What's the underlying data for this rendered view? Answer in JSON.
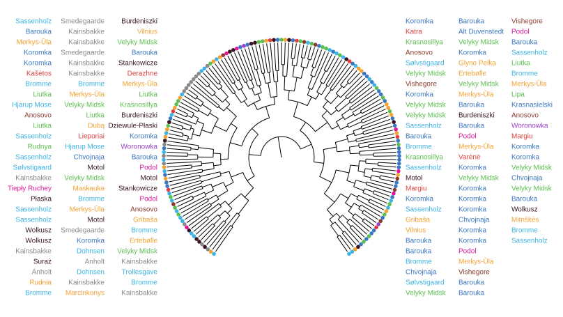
{
  "tree": {
    "tips": [
      "Bromme",
      "Rudnia",
      "Anholt",
      "Suraż",
      "Kainsbakke",
      "Wolkusz",
      "Wolkusz",
      "Sassenholz",
      "Sassenholz",
      "Płaska",
      "Tiepły Ruchey",
      "Kainsbakke",
      "Sølvstigaard",
      "Sassenholz",
      "Rudnya",
      "Sassenholz",
      "Liutka",
      "Anosovo",
      "Hjarup Mose",
      "Liutka",
      "Bromme",
      "Kašėtos",
      "Koromka",
      "Koromka",
      "Merkys-Ūla",
      "Barouka",
      "Sassenholz",
      "Marcinkonys",
      "Kainsbakke",
      "Dohnsen",
      "Anholt",
      "Dohnsen",
      "Koromka",
      "Smedegaarde",
      "Motol",
      "Merkys-Ūla",
      "Bromme",
      "Maskauka",
      "Velyky Midsk",
      "Motol",
      "Chvojnaja",
      "Hjarup Mose",
      "Lieporiai",
      "Dubą",
      "Liutka",
      "Velyky Midsk",
      "Merkys-Ūla",
      "Bromme",
      "Kainsbakke",
      "Kainsbakke",
      "Smedegaarde",
      "Kainsbakke",
      "Kainsbakke",
      "Smedegaarde",
      "Kainsbakke",
      "Bromme",
      "Trollesgave",
      "Kainsbakke",
      "Velyky Midsk",
      "Ertebølle",
      "Bromme",
      "Gribaša",
      "Anosovo",
      "Podol",
      "Stankowicze",
      "Motol",
      "Podol",
      "Barouka",
      "Woronowka",
      "Koromka",
      "Dziewule-Płaski",
      "Burdeniszki",
      "Krasnosillya",
      "Liutka",
      "Merkys-Ūla",
      "Derazhne",
      "Stankowicze",
      "Barouka",
      "Velyky Midsk",
      "Vilnius",
      "Burdeniszki",
      "Koromka",
      "Katra",
      "Krasnosillya",
      "Anosovo",
      "Sølvstigaard",
      "Velyky Midsk",
      "Vishegore",
      "Koromka",
      "Velyky Midsk",
      "Velyky Midsk",
      "Sassenholz",
      "Barouka",
      "Bromme",
      "Krasnosillya",
      "Sassenholz",
      "Motol",
      "Margiu",
      "Koromka",
      "Sassenholz",
      "Gribaša",
      "Vilnius",
      "Barouka",
      "Barouka",
      "Bromme",
      "Chvojnaja",
      "Sølvstigaard",
      "Velyky Midsk",
      "Barouka",
      "Alt Duvenstedt",
      "Velyky Midsk",
      "Koromka",
      "Glyno Pelka",
      "Ertebølle",
      "Velyky Midsk",
      "Merkys-Ūla",
      "Barouka",
      "Burdeniszki",
      "Barouka",
      "Podol",
      "Merkys-Ūla",
      "Varėnė",
      "Koromka",
      "Velyky Midsk",
      "Koromka",
      "Koromka",
      "Koromka",
      "Chvojnaja",
      "Koromka",
      "Koromka",
      "Podol",
      "Merkys-Ūla",
      "Vishegore",
      "Barouka",
      "Barouka",
      "Vishegore",
      "Podol",
      "Barouka",
      "Sassenholz",
      "Liutka",
      "Bromme",
      "Merkys-Ūla",
      "Lipa",
      "Krasnasielski",
      "Anosovo",
      "Woronowka",
      "Margiu",
      "Koromka",
      "Koromka",
      "Velyky Midsk",
      "Chvojnaja",
      "Velyky Midsk",
      "Barouka",
      "Wolkusz",
      "Mitnškės",
      "Bromme",
      "Sassenholz"
    ],
    "site_colors": {
      "Koromka": "#3b78c4",
      "Barouka": "#3b78c4",
      "Chvojnaja": "#3b78c4",
      "Krasnasielski": "#3b78c4",
      "Alt Duvenstedt": "#3b78c4",
      "Sassenholz": "#3cb4e5",
      "Bromme": "#3cb4e5",
      "Dohnsen": "#3cb4e5",
      "Trollesgave": "#3cb4e5",
      "Sølvstigaard": "#3cb4e5",
      "Hjarup Mose": "#3cb4e5",
      "Velyky Midsk": "#5cbf4f",
      "Liutka": "#5cbf4f",
      "Rudnya": "#5cbf4f",
      "Krasnosillya": "#5cbf4f",
      "Lipa": "#5cbf4f",
      "Merkys-Ūla": "#f5a233",
      "Vilnius": "#f5a233",
      "Gribaša": "#f5a233",
      "Marcinkonys": "#f5a233",
      "Rudnia": "#f5a233",
      "Dubą": "#f5a233",
      "Ertebølle": "#f5a233",
      "Glyno Pelka": "#f5a233",
      "Maskauka": "#f5a233",
      "Mitnškės": "#f5a233",
      "Kainsbakke": "#8a8a8a",
      "Smedegaarde": "#8a8a8a",
      "Anholt": "#8a8a8a",
      "Podol": "#e0179c",
      "Tiepły Ruchey": "#e0179c",
      "Motol": "#3a1424",
      "Burdeniszki": "#3a1424",
      "Stankowicze": "#3a1424",
      "Wolkusz": "#3a1424",
      "Płaska": "#3a1424",
      "Suraż": "#3a1424",
      "Dziewule-Płaski": "#3a1424",
      "Anosovo": "#8c3b2c",
      "Vishegore": "#8c3b2c",
      "Woronowka": "#9b3fc8",
      "Kašėtos": "#e0413f",
      "Margiu": "#e0413f",
      "Varėnė": "#e0413f",
      "Lieporiai": "#e0413f",
      "Katra": "#e0413f",
      "Derazhne": "#e0413f"
    }
  }
}
